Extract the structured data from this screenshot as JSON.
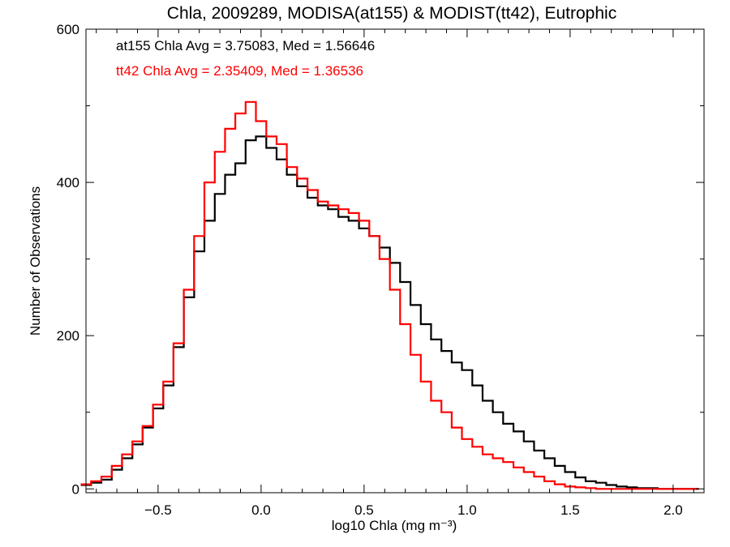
{
  "chart_data": {
    "type": "line",
    "style": "step-histogram",
    "title": "Chla, 2009289, MODISA(at155) & MODIST(tt42), Eutrophic",
    "xlabel": "log10 Chla (mg m⁻³)",
    "ylabel": "Number of Observations",
    "xlim": [
      -0.85,
      2.15
    ],
    "ylim": [
      -5,
      600
    ],
    "x_ticks": [
      -0.5,
      0.0,
      0.5,
      1.0,
      1.5,
      2.0
    ],
    "x_tick_labels": [
      "−0.5",
      "0.0",
      "0.5",
      "1.0",
      "1.5",
      "2.0"
    ],
    "y_ticks": [
      0,
      200,
      400,
      600
    ],
    "y_tick_labels": [
      "0",
      "200",
      "400",
      "600"
    ],
    "grid": false,
    "annotations": [
      {
        "text": "at155 Chla Avg = 3.75083, Med = 1.56646",
        "color": "#000000"
      },
      {
        "text": "tt42 Chla Avg = 2.35409, Med = 1.36536",
        "color": "#ff0000"
      }
    ],
    "series": [
      {
        "color": "#000000",
        "x": [
          -0.85,
          -0.8,
          -0.75,
          -0.7,
          -0.65,
          -0.6,
          -0.55,
          -0.5,
          -0.45,
          -0.4,
          -0.35,
          -0.3,
          -0.25,
          -0.2,
          -0.15,
          -0.1,
          -0.05,
          0.0,
          0.05,
          0.1,
          0.15,
          0.2,
          0.25,
          0.3,
          0.35,
          0.4,
          0.45,
          0.5,
          0.55,
          0.6,
          0.65,
          0.7,
          0.75,
          0.8,
          0.85,
          0.9,
          0.95,
          1.0,
          1.05,
          1.1,
          1.15,
          1.2,
          1.25,
          1.3,
          1.35,
          1.4,
          1.45,
          1.5,
          1.55,
          1.6,
          1.65,
          1.7,
          1.75,
          1.8,
          1.85,
          1.9,
          1.95,
          2.0,
          2.05,
          2.1
        ],
        "values": [
          5,
          8,
          12,
          25,
          40,
          58,
          80,
          105,
          135,
          185,
          250,
          310,
          350,
          385,
          410,
          425,
          455,
          460,
          445,
          430,
          410,
          395,
          380,
          370,
          365,
          355,
          350,
          340,
          330,
          315,
          295,
          270,
          240,
          215,
          195,
          180,
          165,
          155,
          135,
          115,
          100,
          85,
          75,
          62,
          50,
          40,
          30,
          22,
          15,
          10,
          8,
          5,
          3,
          2,
          1,
          1,
          0,
          0,
          0,
          0
        ]
      },
      {
        "color": "#ff0000",
        "x": [
          -0.85,
          -0.8,
          -0.75,
          -0.7,
          -0.65,
          -0.6,
          -0.55,
          -0.5,
          -0.45,
          -0.4,
          -0.35,
          -0.3,
          -0.25,
          -0.2,
          -0.15,
          -0.1,
          -0.05,
          0.0,
          0.05,
          0.1,
          0.15,
          0.2,
          0.25,
          0.3,
          0.35,
          0.4,
          0.45,
          0.5,
          0.55,
          0.6,
          0.65,
          0.7,
          0.75,
          0.8,
          0.85,
          0.9,
          0.95,
          1.0,
          1.05,
          1.1,
          1.15,
          1.2,
          1.25,
          1.3,
          1.35,
          1.4,
          1.45,
          1.5,
          1.55,
          1.6,
          1.65,
          1.7,
          1.75,
          1.8,
          1.85,
          1.9,
          1.95,
          2.0,
          2.05,
          2.1
        ],
        "values": [
          6,
          10,
          16,
          30,
          45,
          62,
          82,
          110,
          140,
          190,
          260,
          330,
          400,
          440,
          470,
          490,
          505,
          480,
          460,
          450,
          420,
          405,
          390,
          375,
          370,
          365,
          360,
          350,
          330,
          300,
          260,
          215,
          175,
          140,
          115,
          100,
          80,
          65,
          55,
          45,
          40,
          35,
          28,
          22,
          16,
          10,
          6,
          3,
          2,
          1,
          0,
          0,
          0,
          0,
          0,
          0,
          0,
          0,
          0,
          0
        ]
      }
    ]
  }
}
